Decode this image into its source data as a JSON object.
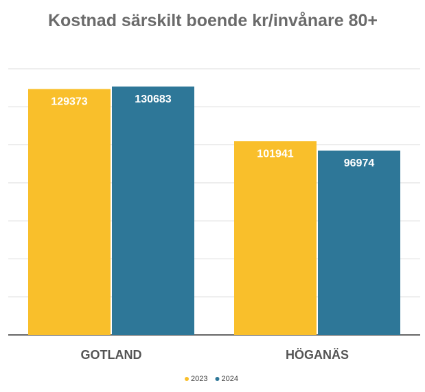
{
  "chart_data": {
    "type": "bar",
    "title": "Kostnad särskilt boende kr/invånare 80+",
    "categories": [
      "GOTLAND",
      "HÖGANÄS"
    ],
    "series": [
      {
        "name": "2023",
        "color": "#f9bf2b",
        "values": [
          129373,
          101941
        ]
      },
      {
        "name": "2024",
        "color": "#2e7798",
        "values": [
          130683,
          96974
        ]
      }
    ],
    "ylim": [
      0,
      140000
    ],
    "yticks": [
      0,
      20000,
      40000,
      60000,
      80000,
      100000,
      120000,
      140000
    ],
    "grid": true,
    "legend": "bottom"
  }
}
